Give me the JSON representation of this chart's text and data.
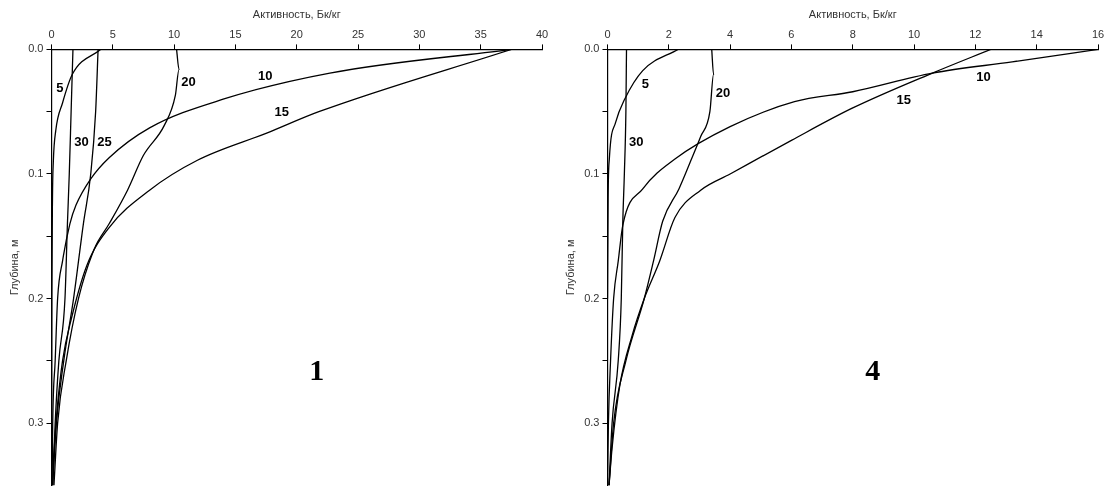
{
  "chart_data": [
    {
      "type": "line",
      "xlabel": "Активность, Бк/кг",
      "ylabel": "Глубина, м",
      "xlim": [
        0,
        40
      ],
      "xticks": [
        0,
        5,
        10,
        15,
        20,
        25,
        30,
        35,
        40
      ],
      "ylim": [
        0.35,
        0
      ],
      "yticks": [
        {
          "value": 0,
          "label": "0.0"
        },
        {
          "value": 0.05,
          "label": null
        },
        0.1,
        {
          "value": 0.15,
          "label": null
        },
        0.2,
        {
          "value": 0.25,
          "label": null
        },
        0.3
      ],
      "grid": false,
      "legend": false,
      "marker": "none",
      "series": [
        {
          "name": "5",
          "color": "#000000",
          "x": [
            4.0,
            1.7,
            0.9,
            0.35,
            0.15,
            0.08,
            0.03,
            0
          ],
          "values": [
            0,
            0.02,
            0.043,
            0.065,
            0.09,
            0.12,
            0.2,
            0.35
          ]
        },
        {
          "name": "10",
          "color": "#000000",
          "x": [
            37.5,
            22.7,
            14,
            8,
            4.7,
            3.2,
            2,
            1.5,
            0.9,
            0.5,
            0.3,
            0.1,
            0.05
          ],
          "values": [
            0,
            0.019,
            0.04,
            0.063,
            0.087,
            0.104,
            0.125,
            0.14,
            0.17,
            0.2,
            0.25,
            0.3,
            0.35
          ]
        },
        {
          "name": "15",
          "color": "#000000",
          "x": [
            37.5,
            21.8,
            17.6,
            11.9,
            8,
            4.7,
            2.9,
            1.65,
            0.9,
            0.45,
            0.15
          ],
          "values": [
            0,
            0.05,
            0.067,
            0.089,
            0.113,
            0.143,
            0.173,
            0.215,
            0.25,
            0.29,
            0.33
          ]
        },
        {
          "name": "20",
          "color": "#000000",
          "x": [
            10.2,
            10.4,
            10.1,
            9.2,
            7.5,
            6.2,
            4.7,
            3.5,
            2.2,
            1.2,
            0.5,
            0.2
          ],
          "values": [
            0,
            0.016,
            0.037,
            0.061,
            0.085,
            0.113,
            0.14,
            0.16,
            0.2,
            0.25,
            0.3,
            0.35
          ]
        },
        {
          "name": "25",
          "color": "#000000",
          "x": [
            3.8,
            3.6,
            3.2,
            2.6,
            1.8,
            1.0,
            0.4,
            0.1
          ],
          "values": [
            0,
            0.05,
            0.1,
            0.14,
            0.2,
            0.25,
            0.3,
            0.35
          ]
        },
        {
          "name": "30",
          "color": "#000000",
          "x": [
            1.75,
            1.6,
            1.45,
            1.3,
            1.1,
            0.6,
            0.3,
            0.1
          ],
          "values": [
            0,
            0.05,
            0.1,
            0.14,
            0.2,
            0.25,
            0.3,
            0.35
          ]
        }
      ],
      "annotations": [
        "1"
      ]
    },
    {
      "type": "line",
      "xlabel": "Активность, Бк/кг",
      "ylabel": "Глубина, м",
      "xlim": [
        0,
        16
      ],
      "xticks": [
        0,
        2,
        4,
        6,
        8,
        10,
        12,
        14,
        16
      ],
      "ylim": [
        0.35,
        0
      ],
      "yticks": [
        {
          "value": 0,
          "label": "0.0"
        },
        {
          "value": 0.05,
          "label": null
        },
        0.1,
        {
          "value": 0.15,
          "label": null
        },
        0.2,
        {
          "value": 0.25,
          "label": null
        },
        0.3
      ],
      "grid": false,
      "legend": false,
      "marker": "none",
      "series": [
        {
          "name": "5",
          "color": "#000000",
          "x": [
            2.3,
            1.15,
            0.56,
            0.26,
            0.06,
            0.02,
            0
          ],
          "values": [
            0,
            0.017,
            0.04,
            0.059,
            0.088,
            0.12,
            0.2
          ]
        },
        {
          "name": "10",
          "color": "#000000",
          "x": [
            16,
            13.2,
            10.6,
            8,
            6.1,
            4,
            2.2,
            1.15,
            0.5,
            0.35,
            0.2,
            0.1,
            0.03,
            0
          ],
          "values": [
            0,
            0.01,
            0.019,
            0.034,
            0.042,
            0.062,
            0.088,
            0.112,
            0.141,
            0.17,
            0.2,
            0.25,
            0.3,
            0.35
          ]
        },
        {
          "name": "15",
          "color": "#000000",
          "x": [
            12.5,
            10.6,
            8,
            6,
            4,
            3.04,
            2.2,
            1.7,
            1.2,
            0.8,
            0.4,
            0.15,
            0.05
          ],
          "values": [
            0,
            0.019,
            0.047,
            0.073,
            0.1,
            0.113,
            0.135,
            0.17,
            0.2,
            0.23,
            0.27,
            0.32,
            0.35
          ]
        },
        {
          "name": "20",
          "color": "#000000",
          "x": [
            3.4,
            3.46,
            3.34,
            3.04,
            2.69,
            2.33,
            1.8,
            1.5,
            1.2,
            0.6,
            0.2,
            0.05
          ],
          "values": [
            0,
            0.02,
            0.05,
            0.07,
            0.091,
            0.112,
            0.138,
            0.17,
            0.2,
            0.25,
            0.3,
            0.35
          ]
        },
        {
          "name": "30",
          "color": "#000000",
          "x": [
            0.62,
            0.6,
            0.55,
            0.5,
            0.45,
            0.35,
            0.15,
            0.05
          ],
          "values": [
            0,
            0.05,
            0.1,
            0.138,
            0.2,
            0.25,
            0.3,
            0.35
          ]
        }
      ],
      "annotations": [
        "4"
      ]
    }
  ]
}
